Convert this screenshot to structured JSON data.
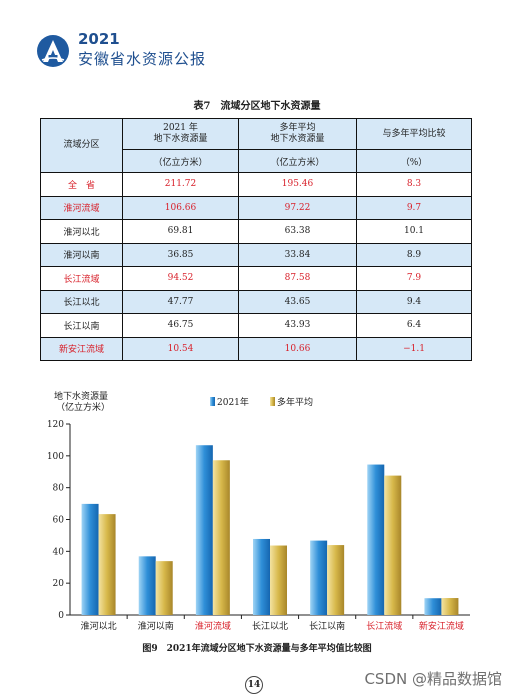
{
  "header": {
    "year": "2021",
    "title": "安徽省水资源公报"
  },
  "table": {
    "caption": "表7　流域分区地下水资源量",
    "headers": {
      "col0": "流域分区",
      "col1_line1": "2021 年",
      "col1_line2": "地下水资源量",
      "col2_line1": "多年平均",
      "col2_line2": "地下水资源量",
      "col3": "与多年平均比较",
      "unit1": "（亿立方米）",
      "unit2": "（亿立方米）",
      "unit3": "（%）"
    },
    "rows": [
      {
        "name": "全　省",
        "v2021": "211.72",
        "avg": "195.46",
        "cmp": "8.3",
        "red": true,
        "highlight": false
      },
      {
        "name": "淮河流域",
        "v2021": "106.66",
        "avg": "97.22",
        "cmp": "9.7",
        "red": true,
        "highlight": true
      },
      {
        "name": "淮河以北",
        "v2021": "69.81",
        "avg": "63.38",
        "cmp": "10.1",
        "red": false,
        "highlight": false
      },
      {
        "name": "淮河以南",
        "v2021": "36.85",
        "avg": "33.84",
        "cmp": "8.9",
        "red": false,
        "highlight": true
      },
      {
        "name": "长江流域",
        "v2021": "94.52",
        "avg": "87.58",
        "cmp": "7.9",
        "red": true,
        "highlight": false
      },
      {
        "name": "长江以北",
        "v2021": "47.77",
        "avg": "43.65",
        "cmp": "9.4",
        "red": false,
        "highlight": true
      },
      {
        "name": "长江以南",
        "v2021": "46.75",
        "avg": "43.93",
        "cmp": "6.4",
        "red": false,
        "highlight": false
      },
      {
        "name": "新安江流域",
        "v2021": "10.54",
        "avg": "10.66",
        "cmp": "−1.1",
        "red": true,
        "highlight": true
      }
    ]
  },
  "chart_data": {
    "type": "bar",
    "ylabel_line1": "地下水资源量",
    "ylabel_line2": "（亿立方米）",
    "ylim": [
      0,
      120
    ],
    "yticks": [
      0,
      20,
      40,
      60,
      80,
      100,
      120
    ],
    "categories": [
      "淮河以北",
      "淮河以南",
      "淮河流域",
      "长江以北",
      "长江以南",
      "长江流域",
      "新安江流域"
    ],
    "category_red": [
      false,
      false,
      true,
      false,
      false,
      true,
      true
    ],
    "series": [
      {
        "name": "2021年",
        "values": [
          69.81,
          36.85,
          106.66,
          47.77,
          46.75,
          94.52,
          10.54
        ]
      },
      {
        "name": "多年平均",
        "values": [
          63.38,
          33.84,
          97.22,
          43.65,
          43.93,
          87.58,
          10.66
        ]
      }
    ],
    "legend_position": "top",
    "grid": false,
    "colors": {
      "series_2021": "#2f8fd8",
      "series_avg": "#d7b84a",
      "category_red": "#d8202a"
    }
  },
  "figure_caption": "图9　2021年流域分区地下水资源量与多年平均值比较图",
  "page_number": "14",
  "watermark": "CSDN @精品数据馆"
}
